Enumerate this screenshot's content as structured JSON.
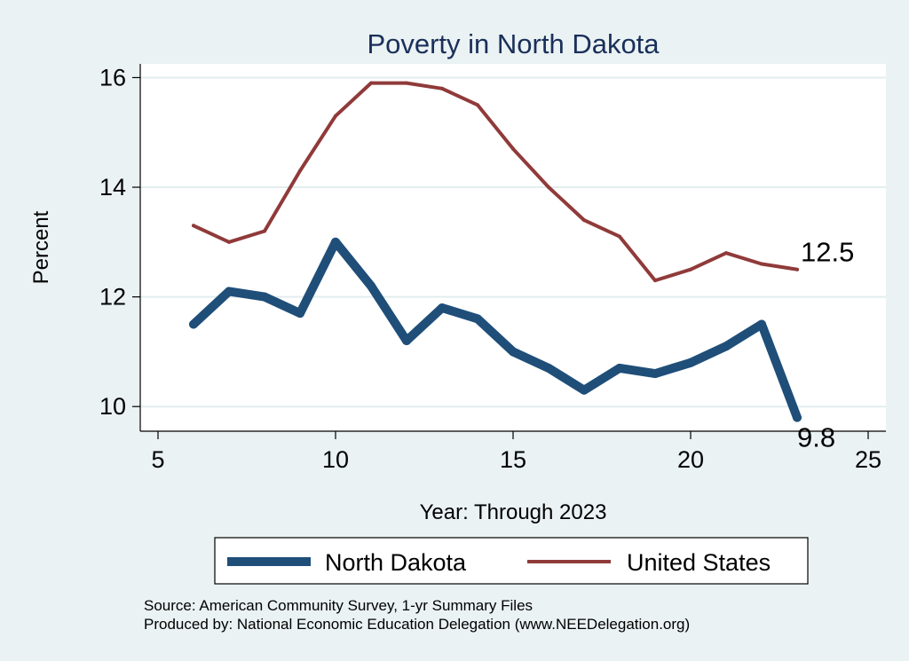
{
  "chart_data": {
    "type": "line",
    "title": "Poverty in North Dakota",
    "xlabel": "Year: Through 2023",
    "ylabel": "Percent",
    "xlim": [
      4.5,
      25.5
    ],
    "ylim": [
      9.55,
      16.25
    ],
    "xticks": [
      "5",
      "10",
      "15",
      "20",
      "25"
    ],
    "yticks": [
      "10",
      "12",
      "14",
      "16"
    ],
    "grid": true,
    "legend_position": "bottom",
    "x": [
      6,
      7,
      8,
      9,
      10,
      11,
      12,
      13,
      14,
      15,
      16,
      17,
      18,
      19,
      20,
      21,
      22,
      23
    ],
    "series": [
      {
        "name": "North Dakota",
        "color": "#1f4e79",
        "values": [
          11.5,
          12.1,
          12.0,
          11.7,
          13.0,
          12.2,
          11.2,
          11.8,
          11.6,
          11.0,
          10.7,
          10.3,
          10.7,
          10.6,
          10.8,
          11.1,
          11.5,
          9.8
        ],
        "end_label": "9.8"
      },
      {
        "name": "United States",
        "color": "#903a3a",
        "values": [
          13.3,
          13.0,
          13.2,
          14.3,
          15.3,
          15.9,
          15.9,
          15.8,
          15.5,
          14.7,
          14.0,
          13.4,
          13.1,
          12.3,
          12.5,
          12.8,
          12.6,
          12.5
        ],
        "end_label": "12.5"
      }
    ]
  },
  "notes": {
    "source": "Source: American Community Survey, 1-yr Summary Files",
    "producer": "Produced by: National Economic Education Delegation (www.NEEDelegation.org)"
  }
}
